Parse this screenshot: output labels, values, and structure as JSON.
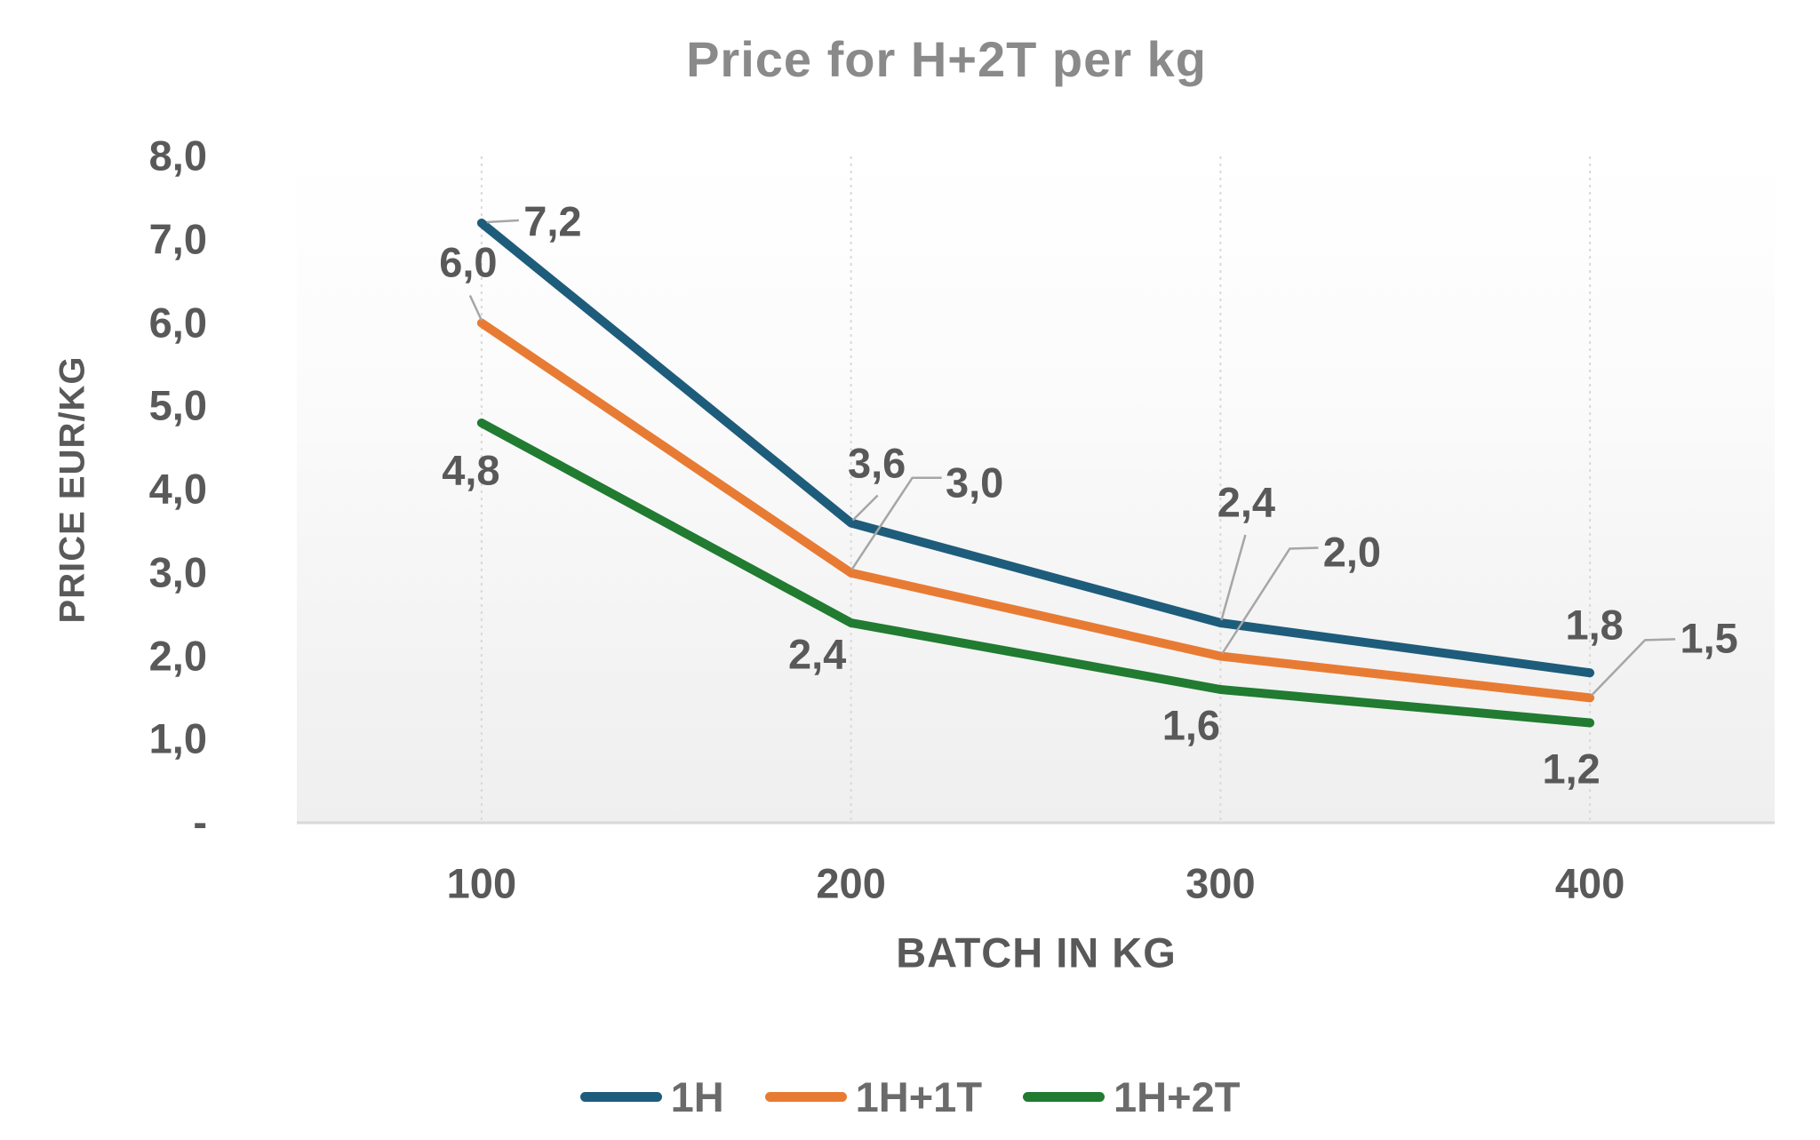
{
  "chart_data": {
    "type": "line",
    "title": "Price for H+2T per kg",
    "xlabel": "BATCH IN KG",
    "ylabel": "PRICE EUR/KG",
    "categories": [
      "100",
      "200",
      "300",
      "400"
    ],
    "ylim": [
      0,
      8
    ],
    "y_ticks": [
      {
        "value": 8,
        "label": "8,0"
      },
      {
        "value": 7,
        "label": "7,0"
      },
      {
        "value": 6,
        "label": "6,0"
      },
      {
        "value": 5,
        "label": "5,0"
      },
      {
        "value": 4,
        "label": "4,0"
      },
      {
        "value": 3,
        "label": "3,0"
      },
      {
        "value": 2,
        "label": "2,0"
      },
      {
        "value": 1,
        "label": "1,0"
      },
      {
        "value": 0,
        "label": "-"
      }
    ],
    "grid": {
      "vertical_gridlines": true,
      "horizontal_gridlines": false
    },
    "legend_position": "bottom",
    "colors": {
      "gridline": "#D9D9D9",
      "axis_line": "#D9D9D9",
      "leader_line": "#A6A6A6",
      "label_text": "#595959",
      "title_text": "#8A8A8A"
    },
    "series": [
      {
        "name": "1H",
        "color": "#1E5C7B",
        "values": [
          7.2,
          3.6,
          2.4,
          1.8
        ],
        "point_labels": [
          {
            "text": "7,2",
            "dx": 80,
            "dy": -2,
            "leader": [
              [
                6,
                -1
              ],
              [
                42,
                -3
              ]
            ]
          },
          {
            "text": "3,6",
            "dx": 29,
            "dy": -68,
            "leader": [
              [
                2,
                -3
              ],
              [
                30,
                -31
              ]
            ]
          },
          {
            "text": "2,4",
            "dx": 29,
            "dy": -136,
            "leader": [
              [
                1,
                -3
              ],
              [
                28,
                -99
              ]
            ]
          },
          {
            "text": "1,8",
            "dx": 5,
            "dy": -54,
            "leader": []
          }
        ]
      },
      {
        "name": "1H+1T",
        "color": "#E87B33",
        "values": [
          6.0,
          3.0,
          2.0,
          1.5
        ],
        "point_labels": [
          {
            "text": "6,0",
            "dx": -15,
            "dy": -69,
            "leader": [
              [
                -13,
                -31
              ],
              [
                0,
                -3
              ]
            ]
          },
          {
            "text": "3,0",
            "dx": 139,
            "dy": -102,
            "leader": [
              [
                1,
                -4
              ],
              [
                69,
                -107
              ],
              [
                102,
                -107
              ]
            ]
          },
          {
            "text": "2,0",
            "dx": 148,
            "dy": -118,
            "leader": [
              [
                2,
                -3
              ],
              [
                78,
                -121
              ],
              [
                110,
                -122
              ]
            ]
          },
          {
            "text": "1,5",
            "dx": 134,
            "dy": -67,
            "leader": [
              [
                2,
                -3
              ],
              [
                62,
                -65
              ],
              [
                96,
                -66
              ]
            ]
          }
        ]
      },
      {
        "name": "1H+2T",
        "color": "#217B31",
        "values": [
          4.8,
          2.4,
          1.6,
          1.2
        ],
        "point_labels": [
          {
            "text": "4,8",
            "dx": -12,
            "dy": 53,
            "leader": []
          },
          {
            "text": "2,4",
            "dx": -38,
            "dy": 35,
            "leader": []
          },
          {
            "text": "1,6",
            "dx": -33,
            "dy": 40,
            "leader": []
          },
          {
            "text": "1,2",
            "dx": -21,
            "dy": 51,
            "leader": []
          }
        ]
      }
    ]
  }
}
